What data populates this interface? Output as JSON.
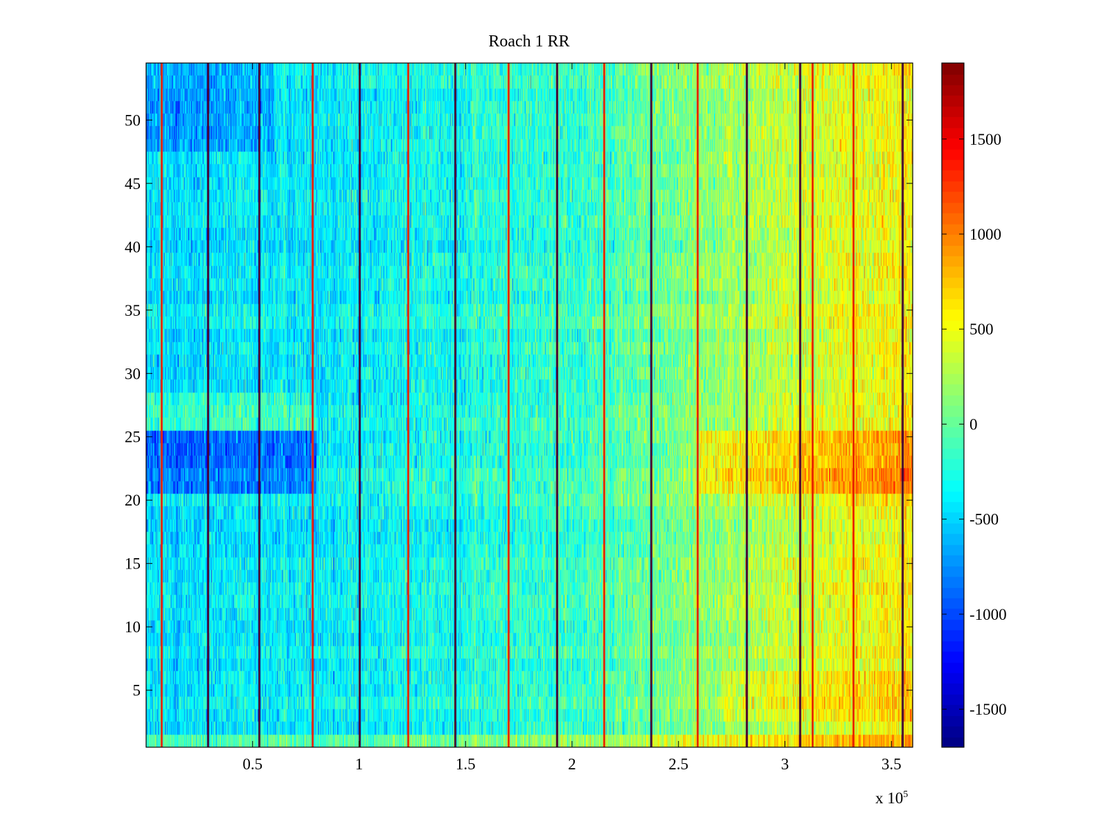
{
  "chart_data": {
    "type": "heatmap",
    "title": "Roach 1 RR",
    "xlabel": "",
    "ylabel": "",
    "x_multiplier_base": "x 10",
    "x_multiplier_exponent": "5",
    "xlim": [
      0,
      3.6
    ],
    "ylim": [
      0.5,
      54.5
    ],
    "x_ticks": [
      0.5,
      1,
      1.5,
      2,
      2.5,
      3,
      3.5
    ],
    "x_tick_labels": [
      "0.5",
      "1",
      "1.5",
      "2",
      "2.5",
      "3",
      "3.5"
    ],
    "y_ticks": [
      5,
      10,
      15,
      20,
      25,
      30,
      35,
      40,
      45,
      50
    ],
    "y_tick_labels": [
      "5",
      "10",
      "15",
      "20",
      "25",
      "30",
      "35",
      "40",
      "45",
      "50"
    ],
    "rows": 54,
    "colormap": "jet",
    "clim": [
      -1700,
      1900
    ],
    "colorbar_ticks": [
      1500,
      1000,
      500,
      0,
      -500,
      -1000,
      -1500
    ],
    "colorbar_tick_labels": [
      "1500",
      "1000",
      "500",
      "0",
      "-500",
      "-1000",
      "-1500"
    ],
    "value_trend": {
      "x": [
        0,
        1.0,
        2.0,
        2.5,
        3.0,
        3.6
      ],
      "value": [
        -450,
        -350,
        -150,
        100,
        350,
        600
      ]
    },
    "row_offsets": [
      {
        "rows": [
          1,
          1
        ],
        "offset": 350
      },
      {
        "rows": [
          3,
          6
        ],
        "offset": 150,
        "x_from": 2.7
      },
      {
        "rows": [
          21,
          25
        ],
        "offset": -450,
        "x_to": 0.8
      },
      {
        "rows": [
          21,
          25
        ],
        "offset": 350,
        "x_from": 2.6
      },
      {
        "rows": [
          26,
          28
        ],
        "offset": 250,
        "x_to": 0.8
      },
      {
        "rows": [
          48,
          54
        ],
        "offset": -250,
        "x_to": 0.6
      }
    ],
    "vertical_lines": [
      {
        "x": 0.07,
        "kind": "red"
      },
      {
        "x": 0.29,
        "kind": "dark"
      },
      {
        "x": 0.53,
        "kind": "dark"
      },
      {
        "x": 0.78,
        "kind": "red"
      },
      {
        "x": 1.0,
        "kind": "dark"
      },
      {
        "x": 1.23,
        "kind": "red"
      },
      {
        "x": 1.45,
        "kind": "dark"
      },
      {
        "x": 1.7,
        "kind": "red"
      },
      {
        "x": 1.93,
        "kind": "dark"
      },
      {
        "x": 2.15,
        "kind": "red"
      },
      {
        "x": 2.37,
        "kind": "dark"
      },
      {
        "x": 2.59,
        "kind": "red"
      },
      {
        "x": 2.82,
        "kind": "dark"
      },
      {
        "x": 3.07,
        "kind": "dark"
      },
      {
        "x": 3.13,
        "kind": "red"
      },
      {
        "x": 3.32,
        "kind": "red"
      },
      {
        "x": 3.55,
        "kind": "dark"
      }
    ]
  }
}
